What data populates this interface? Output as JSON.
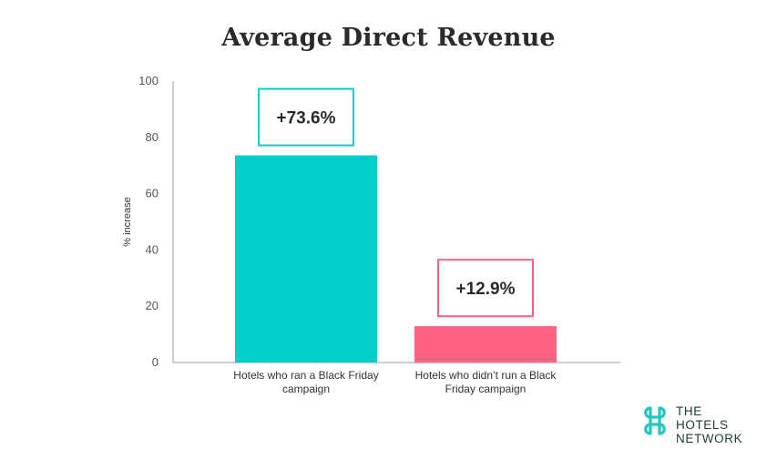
{
  "chart_data": {
    "type": "bar",
    "title": "Average Direct Revenue",
    "ylabel": "% increase",
    "xlabel": "",
    "ylim": [
      0,
      100
    ],
    "yticks": [
      0,
      20,
      40,
      60,
      80,
      100
    ],
    "categories": [
      "Hotels who ran a Black Friday campaign",
      "Hotels who didn't run a Black Friday campaign"
    ],
    "category_lines": [
      [
        "Hotels who ran a Black Friday",
        "campaign"
      ],
      [
        "Hotels who didn’t run a Black",
        "Friday campaign"
      ]
    ],
    "values": [
      73.6,
      12.9
    ],
    "data_labels": [
      "+73.6%",
      "+12.9%"
    ],
    "colors": [
      "#00cfc9",
      "#ff6282"
    ],
    "grid": false,
    "legend": "none"
  },
  "logo": {
    "lines": [
      "THE",
      "HOTELS",
      "NETWORK"
    ],
    "icon": "hotels-network-logo-icon",
    "color": "#1fc7bf"
  }
}
